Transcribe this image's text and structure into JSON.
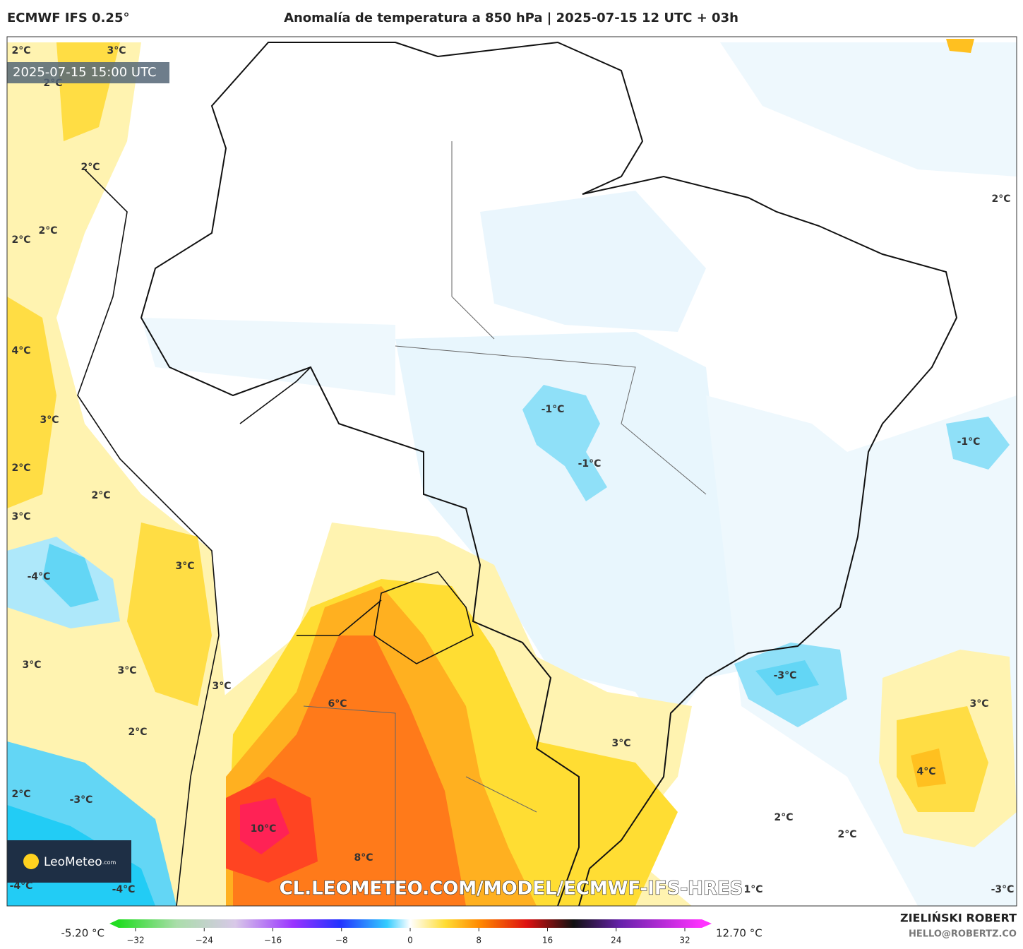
{
  "header": {
    "model": "ECMWF IFS 0.25°",
    "title": "Anomalía de temperatura a 850 hPa | 2025-07-15 12 UTC + 03h"
  },
  "map": {
    "timestamp": "2025-07-15 15:00 UTC",
    "watermark": "CL.LEOMETEO.COM/MODEL/ECMWF-IFS-HRES",
    "logo_name": "LeoMeteo",
    "logo_suffix": ".com",
    "contour_labels": [
      "2°C",
      "3°C",
      "2°C",
      "2°C",
      "2°C",
      "2°C",
      "2°C",
      "4°C",
      "3°C",
      "2°C",
      "-1°C",
      "-1°C",
      "-1°C",
      "2°C",
      "3°C",
      "3°C",
      "-4°C",
      "3°C",
      "3°C",
      "3°C",
      "-3°C",
      "6°C",
      "3°C",
      "2°C",
      "3°C",
      "4°C",
      "2°C",
      "-3°C",
      "2°C",
      "10°C",
      "2°C",
      "8°C",
      "-4°C",
      "-4°C",
      "1°C",
      "-3°C"
    ]
  },
  "colorbar": {
    "min_label": "-5.20 °C",
    "max_label": "12.70 °C",
    "lim": [
      -32,
      32
    ],
    "ticks": [
      {
        "value": -32,
        "label": "−32"
      },
      {
        "value": -24,
        "label": "−24"
      },
      {
        "value": -16,
        "label": "−16"
      },
      {
        "value": -8,
        "label": "−8"
      },
      0,
      8,
      16,
      24,
      32
    ]
  },
  "footer": {
    "author": "ZIELIŃSKI ROBERT",
    "email": "HELLO@ROBERTZ.CO"
  }
}
